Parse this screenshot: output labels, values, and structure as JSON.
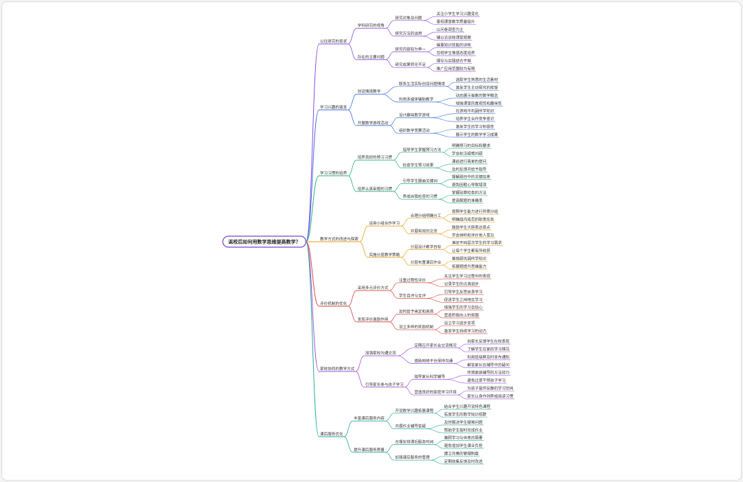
{
  "title": "返校后如何用数学思维提高教学？",
  "branches": [
    {
      "label": "以往研究的现状",
      "children": [
        {
          "label": "学科研究的视角",
          "children": [
            {
              "label": "研究对象及问题",
              "children": [
                "关注小学生学习兴趣变化",
                "重视课堂教学质量提升"
              ]
            },
            {
              "label": "研究方法的运用",
              "children": [
                "以问卷调查为主",
                "辅以访谈和课堂观察"
              ]
            }
          ]
        },
        {
          "label": "存在的主要问题",
          "children": [
            {
              "label": "研究内容较为单一",
              "children": [
                "偏重知识技能的训练",
                "忽视学生情感态度培养"
              ]
            },
            {
              "label": "研究成果转化不足",
              "children": [
                "理论与实践结合不够",
                "推广应用范围较为有限"
              ]
            }
          ]
        }
      ]
    },
    {
      "label": "学习兴趣的激发",
      "children": [
        {
          "label": "创设情境教学",
          "children": [
            {
              "label": "联系生活实际创设问题情境",
              "children": [
                "选取学生熟悉的生活素材",
                "激发学生主动探究的欲望"
              ]
            },
            {
              "label": "利用多媒体辅助教学",
              "children": [
                "动态展示抽象的数学概念",
                "增强课堂的直观性和趣味性"
              ]
            }
          ]
        },
        {
          "label": "开展数学游戏活动",
          "children": [
            {
              "label": "设计趣味数学游戏",
              "children": [
                "在游戏中巩固所学知识",
                "培养学生合作竞争意识"
              ]
            },
            {
              "label": "组织数学竞赛活动",
              "children": [
                "激发学生的学习积极性",
                "展示学生的数学学习成果"
              ]
            }
          ]
        }
      ]
    },
    {
      "label": "学习习惯的培养",
      "children": [
        {
          "label": "培养良好的预习习惯",
          "children": [
            {
              "label": "指导学生掌握预习方法",
              "children": [
                "明确预习的目标和要求",
                "学会标注疑难问题"
              ]
            },
            {
              "label": "检查学生预习效果",
              "children": [
                "课前进行简单的提问",
                "及时反馈并给予指导"
              ]
            }
          ]
        },
        {
          "label": "培养认真审题的习惯",
          "children": [
            {
              "label": "引导学生圈画关键词",
              "children": [
                "理解题目中的关键信息",
                "避免因粗心导致错误"
              ]
            },
            {
              "label": "养成自我检查的习惯",
              "children": [
                "掌握验算检查的方法",
                "提高解题的准确率"
              ]
            }
          ]
        }
      ]
    },
    {
      "label": "教学方式的改进与探索",
      "children": [
        {
          "label": "运用小组合作学习",
          "children": [
            {
              "label": "合理分组明确分工",
              "children": [
                "按照学生能力进行异质分组",
                "明确组内成员的职责任务"
              ]
            },
            {
              "label": "开展有效的交流",
              "children": [
                "鼓励学生大胆表达观点",
                "学会倾听和评价他人意见"
              ]
            }
          ]
        },
        {
          "label": "实施分层教学策略",
          "children": [
            {
              "label": "分层设计教学目标",
              "children": [
                "满足不同层次学生的学习需求",
                "让每个学生都有所收获"
              ]
            },
            {
              "label": "分层布置课后作业",
              "children": [
                "基础题巩固所学知识",
                "拓展题提升思维能力"
              ]
            }
          ]
        }
      ]
    },
    {
      "label": "评价机制的优化",
      "children": [
        {
          "label": "采用多元评价方式",
          "children": [
            {
              "label": "注重过程性评价",
              "children": [
                "关注学生学习过程中的表现",
                "记录学生的点滴进步"
              ]
            },
            {
              "label": "学生自评与互评",
              "children": [
                "引导学生反思自身学习",
                "促进学生之间相互学习"
              ]
            }
          ]
        },
        {
          "label": "发挥评价激励作用",
          "children": [
            {
              "label": "及时给予肯定和表扬",
              "children": [
                "增强学生的学习自信心",
                "营造积极向上的氛围"
              ]
            },
            {
              "label": "设立多样的奖励机制",
              "children": [
                "设立学习进步奖项",
                "激发学生持续学习的动力"
              ]
            }
          ]
        }
      ]
    },
    {
      "label": "家校协同的教学方式",
      "children": [
        {
          "label": "加强家校沟通交流",
          "children": [
            {
              "label": "定期召开家长会交流情况",
              "children": [
                "向家长反馈学生在校表现",
                "了解学生在家的学习情况"
              ]
            },
            {
              "label": "借助网络平台保持沟通",
              "children": [
                "利用班级群及时发布通知",
                "解答家长在辅导中的疑问"
              ]
            }
          ]
        },
        {
          "label": "引导家长参与孩子学习",
          "children": [
            {
              "label": "指导家长科学辅导",
              "children": [
                "传授家庭辅导的方法技巧",
                "避免过度干预孩子学习"
              ]
            },
            {
              "label": "营造良好的家庭学习环境",
              "children": [
                "为孩子提供安静的学习空间",
                "家长以身作则养成阅读习惯"
              ]
            }
          ]
        }
      ]
    },
    {
      "label": "课后服务优化",
      "children": [
        {
          "label": "丰富课后服务内容",
          "children": [
            {
              "label": "开设数学兴趣拓展课程",
              "children": [
                "结合学生兴趣开设特色课程",
                "拓宽学生的数学知识视野"
              ]
            },
            {
              "label": "开展作业辅导答疑",
              "children": [
                "及时解决学生疑难问题",
                "帮助学生按时完成作业"
              ]
            }
          ]
        },
        {
          "label": "提升课后服务质量",
          "children": [
            {
              "label": "合理安排课后服务时间",
              "children": [
                "兼顾学习与休息的需要",
                "避免增加学生课业负担"
              ]
            },
            {
              "label": "加强课后服务的管理",
              "children": [
                "建立完善的管理制度",
                "定期收集反馈及时改进"
              ]
            }
          ]
        }
      ]
    }
  ]
}
